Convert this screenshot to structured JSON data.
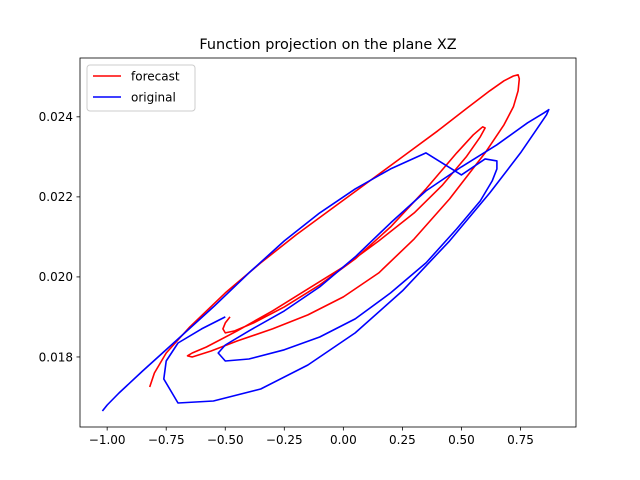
{
  "chart_data": {
    "type": "line",
    "title": "Function projection on the plane XZ",
    "xlabel": "",
    "ylabel": "",
    "xlim": [
      -1.115,
      0.985
    ],
    "ylim": [
      0.01625,
      0.02547
    ],
    "xticks": [
      -1.0,
      -0.75,
      -0.5,
      -0.25,
      0.0,
      0.25,
      0.5,
      0.75
    ],
    "xtick_labels": [
      "−1.00",
      "−0.75",
      "−0.50",
      "−0.25",
      "0.00",
      "0.25",
      "0.50",
      "0.75"
    ],
    "yticks": [
      0.018,
      0.02,
      0.022,
      0.024
    ],
    "ytick_labels": [
      "0.018",
      "0.020",
      "0.022",
      "0.024"
    ],
    "grid": false,
    "legend": "upper-left",
    "series": [
      {
        "name": "forecast",
        "color": "#ff0000",
        "x": [
          -0.82,
          -0.8,
          -0.75,
          -0.65,
          -0.5,
          -0.35,
          -0.2,
          -0.05,
          0.1,
          0.25,
          0.4,
          0.52,
          0.62,
          0.68,
          0.72,
          0.74,
          0.745,
          0.74,
          0.72,
          0.68,
          0.6,
          0.45,
          0.3,
          0.15,
          0.0,
          -0.15,
          -0.3,
          -0.45,
          -0.56,
          -0.64,
          -0.66,
          -0.64,
          -0.58,
          -0.45,
          -0.3,
          -0.15,
          0.0,
          0.15,
          0.3,
          0.42,
          0.52,
          0.58,
          0.6,
          0.59,
          0.55,
          0.48,
          0.35,
          0.2,
          0.05,
          -0.1,
          -0.25,
          -0.38,
          -0.46,
          -0.5,
          -0.51,
          -0.5,
          -0.48
        ],
        "y": [
          0.01725,
          0.0176,
          0.0181,
          0.01875,
          0.0196,
          0.02035,
          0.02105,
          0.0217,
          0.02235,
          0.023,
          0.02365,
          0.0242,
          0.02465,
          0.0249,
          0.02502,
          0.02505,
          0.02495,
          0.02465,
          0.02425,
          0.0238,
          0.0231,
          0.02195,
          0.02095,
          0.0201,
          0.0195,
          0.01905,
          0.0187,
          0.0184,
          0.01815,
          0.018,
          0.01803,
          0.0181,
          0.01825,
          0.01865,
          0.01915,
          0.0197,
          0.02025,
          0.0209,
          0.0216,
          0.0223,
          0.023,
          0.0235,
          0.02372,
          0.02375,
          0.02355,
          0.0231,
          0.0222,
          0.02125,
          0.02045,
          0.0198,
          0.01925,
          0.01885,
          0.01865,
          0.0186,
          0.0187,
          0.01885,
          0.019
        ]
      },
      {
        "name": "original",
        "color": "#0000ff",
        "x": [
          -1.02,
          -1.0,
          -0.95,
          -0.85,
          -0.7,
          -0.55,
          -0.4,
          -0.25,
          -0.1,
          0.05,
          0.2,
          0.35,
          0.5,
          0.6,
          0.65,
          0.65,
          0.63,
          0.58,
          0.48,
          0.35,
          0.2,
          0.05,
          -0.1,
          -0.25,
          -0.4,
          -0.5,
          -0.53,
          -0.5,
          -0.4,
          -0.25,
          -0.1,
          0.05,
          0.2,
          0.35,
          0.5,
          0.65,
          0.78,
          0.85,
          0.87,
          0.86,
          0.82,
          0.75,
          0.62,
          0.45,
          0.25,
          0.05,
          -0.15,
          -0.35,
          -0.55,
          -0.7,
          -0.76,
          -0.75,
          -0.7,
          -0.6,
          -0.5
        ],
        "y": [
          0.01665,
          0.0168,
          0.0171,
          0.01765,
          0.01845,
          0.01925,
          0.0201,
          0.0209,
          0.0216,
          0.0222,
          0.0227,
          0.0231,
          0.02255,
          0.02295,
          0.0229,
          0.0227,
          0.0224,
          0.0219,
          0.0212,
          0.02035,
          0.0196,
          0.01895,
          0.0185,
          0.01818,
          0.01795,
          0.0179,
          0.0181,
          0.0183,
          0.01865,
          0.01915,
          0.01975,
          0.0205,
          0.02135,
          0.02215,
          0.02275,
          0.0233,
          0.02385,
          0.0241,
          0.02418,
          0.02405,
          0.0237,
          0.0231,
          0.0221,
          0.0209,
          0.01965,
          0.0186,
          0.0178,
          0.0172,
          0.0169,
          0.01685,
          0.01745,
          0.0179,
          0.01835,
          0.0187,
          0.019
        ]
      }
    ]
  }
}
